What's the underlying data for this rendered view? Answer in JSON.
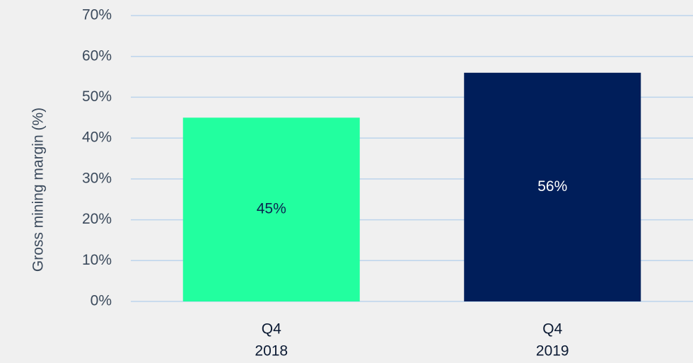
{
  "chart_data": {
    "type": "bar",
    "y_label": "Gross mining margin (%)",
    "categories": [
      [
        "Q4",
        "2018"
      ],
      [
        "Q4",
        "2019"
      ]
    ],
    "values": [
      45,
      56
    ],
    "value_labels": [
      "45%",
      "56%"
    ],
    "colors": [
      "#22ff9f",
      "#001e5a"
    ],
    "ylim": [
      0,
      70
    ],
    "yticks": [
      {
        "value": 0,
        "label": "0%"
      },
      {
        "value": 10,
        "label": "10%"
      },
      {
        "value": 20,
        "label": "20%"
      },
      {
        "value": 30,
        "label": "30%"
      },
      {
        "value": 40,
        "label": "40%"
      },
      {
        "value": 50,
        "label": "50%"
      },
      {
        "value": 60,
        "label": "60%"
      },
      {
        "value": 70,
        "label": "70%"
      }
    ],
    "grid": true
  }
}
